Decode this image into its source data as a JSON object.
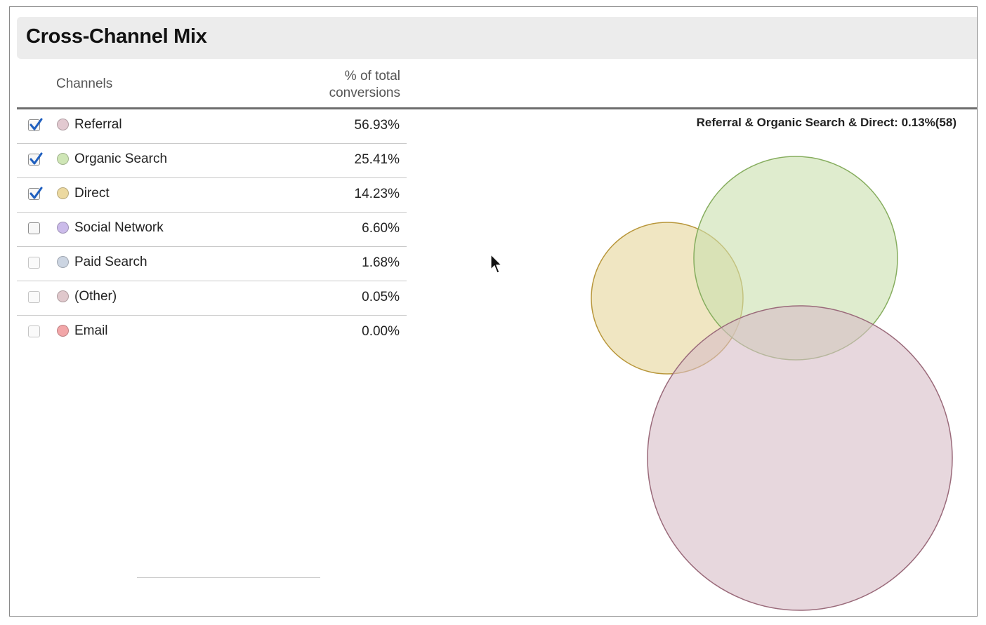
{
  "panel": {
    "title": "Cross-Channel Mix"
  },
  "table": {
    "headers": {
      "channels": "Channels",
      "pct": "% of total conversions"
    },
    "rows": [
      {
        "name": "Referral",
        "pct": "56.93%",
        "checked": true,
        "color": "#e2c9d0"
      },
      {
        "name": "Organic Search",
        "pct": "25.41%",
        "checked": true,
        "color": "#cfe6b6"
      },
      {
        "name": "Direct",
        "pct": "14.23%",
        "checked": true,
        "color": "#ecd9a0"
      },
      {
        "name": "Social Network",
        "pct": "6.60%",
        "checked": false,
        "color": "#cbbbea"
      },
      {
        "name": "Paid Search",
        "pct": "1.68%",
        "checked": false,
        "color": "#ccd5e2"
      },
      {
        "name": "(Other)",
        "pct": "0.05%",
        "checked": false,
        "color": "#e0c8cc"
      },
      {
        "name": "Email",
        "pct": "0.00%",
        "checked": false,
        "color": "#f2a6a8"
      }
    ]
  },
  "venn": {
    "caption": "Referral & Organic Search & Direct: 0.13%(58)",
    "circles": [
      {
        "name": "Direct",
        "fill": "#e6d59a",
        "stroke": "#b8963a"
      },
      {
        "name": "Organic Search",
        "fill": "#c9e0ad",
        "stroke": "#86ad5e"
      },
      {
        "name": "Referral",
        "fill": "#d7bcc6",
        "stroke": "#9a6a7a"
      }
    ]
  },
  "icons": {
    "checkbox": "checkbox-icon",
    "check": "check-mark-icon",
    "cursor": "mouse-pointer-icon"
  }
}
